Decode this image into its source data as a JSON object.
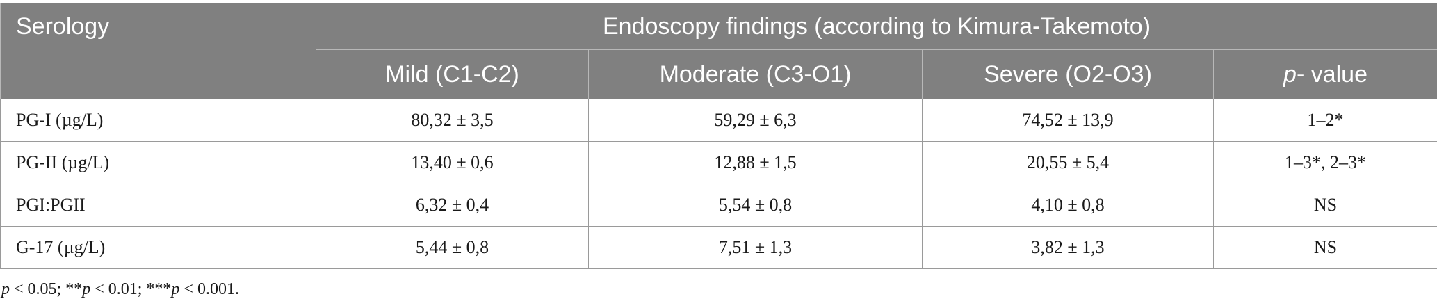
{
  "header": {
    "serology": "Serology",
    "group": "Endoscopy findings (according to Kimura-Takemoto)",
    "columns": [
      "Mild (C1-C2)",
      "Moderate (C3-O1)",
      "Severe (O2-O3)"
    ],
    "pvalue_p": "p",
    "pvalue_rest": "- value"
  },
  "rows": [
    {
      "label": "PG-I (µg/L)",
      "mild": "80,32 ± 3,5",
      "moderate": "59,29 ± 6,3",
      "severe": "74,52 ± 13,9",
      "p": "1–2*"
    },
    {
      "label": "PG-II (µg/L)",
      "mild": "13,40 ± 0,6",
      "moderate": "12,88 ± 1,5",
      "severe": "20,55 ± 5,4",
      "p": "1–3*, 2–3*"
    },
    {
      "label": "PGI:PGII",
      "mild": "6,32 ± 0,4",
      "moderate": "5,54 ± 0,8",
      "severe": "4,10 ± 0,8",
      "p": "NS"
    },
    {
      "label": "G-17 (µg/L)",
      "mild": "5,44 ± 0,8",
      "moderate": "7,51 ± 1,3",
      "severe": "3,82 ± 1,3",
      "p": "NS"
    }
  ],
  "footnote": {
    "p1": "p",
    "t1": " < 0.05; **",
    "p2": "p",
    "t2": " < 0.01; ***",
    "p3": "p",
    "t3": " < 0.001."
  }
}
